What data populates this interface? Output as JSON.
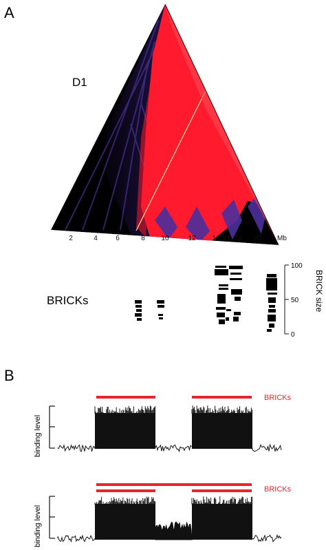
{
  "panel_a": {
    "label": "A",
    "heatmap_label": "D1",
    "x_axis": {
      "ticks": [
        "2",
        "4",
        "6",
        "8",
        "10",
        "12",
        "14",
        "16",
        "18",
        "20"
      ],
      "unit": "Mb"
    },
    "bricks_label": "BRICKs",
    "size_axis": {
      "label": "BRICK size",
      "ticks": [
        "0",
        "50",
        "100"
      ],
      "range": [
        0,
        100
      ]
    }
  },
  "panel_b": {
    "label": "B",
    "top": {
      "ylabel": "binding level",
      "bricks_label": "BRICKs"
    },
    "bottom": {
      "ylabel": "binding level",
      "bricks_label": "BRICKs"
    }
  },
  "colors": {
    "heatmap_high": "#ff1a2e",
    "heatmap_mid": "#6a4fc9",
    "heatmap_low": "#000000",
    "bricks_bar": "#e8242c",
    "signal": "#111111"
  }
}
